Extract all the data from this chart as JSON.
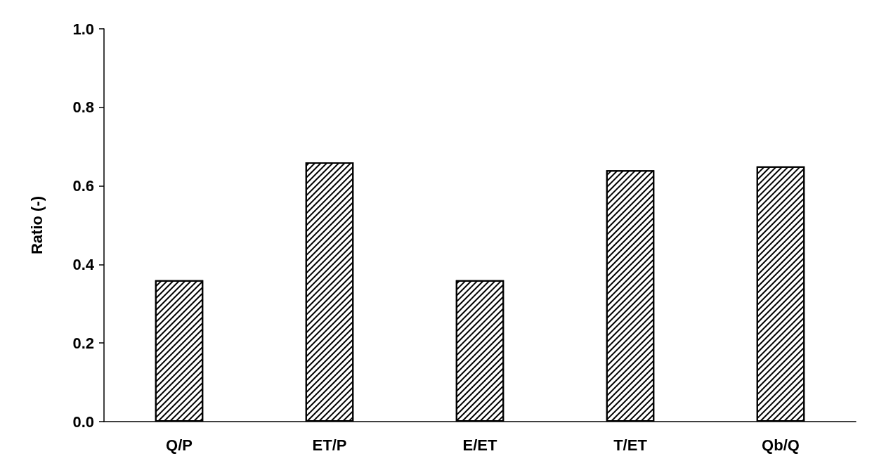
{
  "chart_data": {
    "type": "bar",
    "ylabel": "Ratio (-)",
    "categories": [
      "Q/P",
      "ET/P",
      "E/ET",
      "T/ET",
      "Qb/Q"
    ],
    "values": [
      0.36,
      0.66,
      0.36,
      0.64,
      0.65
    ],
    "color": "#000000",
    "ylim": [
      0,
      1.0
    ],
    "yticks": [
      {
        "value": 0,
        "label": "0.0"
      },
      0.2,
      0.4,
      0.6,
      0.8,
      {
        "value": 1.0,
        "label": "1.0"
      }
    ],
    "grid": false
  }
}
